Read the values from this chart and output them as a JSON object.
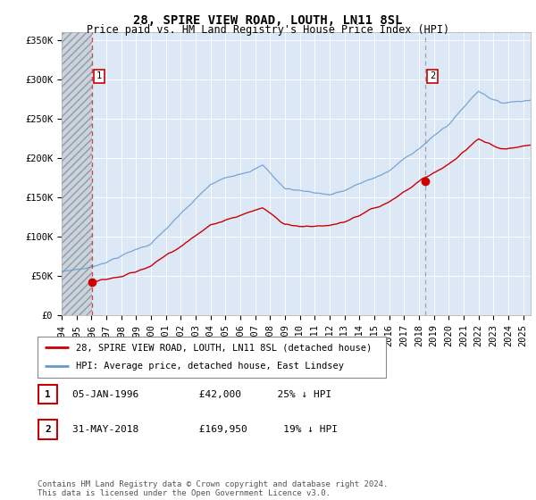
{
  "title": "28, SPIRE VIEW ROAD, LOUTH, LN11 8SL",
  "subtitle": "Price paid vs. HM Land Registry's House Price Index (HPI)",
  "legend_line1": "28, SPIRE VIEW ROAD, LOUTH, LN11 8SL (detached house)",
  "legend_line2": "HPI: Average price, detached house, East Lindsey",
  "transaction1": {
    "label": "1",
    "date": "05-JAN-1996",
    "price": 42000,
    "year": 1996.02,
    "hpi_pct": "25% ↓ HPI"
  },
  "transaction2": {
    "label": "2",
    "date": "31-MAY-2018",
    "price": 169950,
    "year": 2018.42,
    "hpi_pct": "19% ↓ HPI"
  },
  "footer": "Contains HM Land Registry data © Crown copyright and database right 2024.\nThis data is licensed under the Open Government Licence v3.0.",
  "xlim": [
    1994.0,
    2025.5
  ],
  "ylim": [
    0,
    360000
  ],
  "yticks": [
    0,
    50000,
    100000,
    150000,
    200000,
    250000,
    300000,
    350000
  ],
  "ytick_labels": [
    "£0",
    "£50K",
    "£100K",
    "£150K",
    "£200K",
    "£250K",
    "£300K",
    "£350K"
  ],
  "plot_bg": "#dce8f5",
  "red_color": "#cc0000",
  "blue_color": "#6699cc",
  "grid_color": "#ffffff",
  "title_fontsize": 10,
  "subtitle_fontsize": 8.5,
  "tick_fontsize": 7.5
}
